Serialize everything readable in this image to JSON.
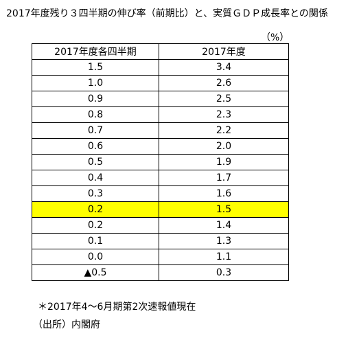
{
  "title": "2017年度残り３四半期の伸び率（前期比）と、実質ＧＤＰ成長率との関係",
  "unit": "（%）",
  "table": {
    "headers": [
      "2017年度各四半期",
      "2017年度"
    ],
    "rows": [
      [
        "1.5",
        "3.4"
      ],
      [
        "1.0",
        "2.6"
      ],
      [
        "0.9",
        "2.5"
      ],
      [
        "0.8",
        "2.3"
      ],
      [
        "0.7",
        "2.2"
      ],
      [
        "0.6",
        "2.0"
      ],
      [
        "0.5",
        "1.9"
      ],
      [
        "0.4",
        "1.7"
      ],
      [
        "0.3",
        "1.6"
      ],
      [
        "0.2",
        "1.5"
      ],
      [
        "0.2",
        "1.4"
      ],
      [
        "0.1",
        "1.3"
      ],
      [
        "0.0",
        "1.1"
      ],
      [
        "▲0.5",
        "0.3"
      ]
    ],
    "highlight_row_index": 9,
    "highlight_color": "#ffff00"
  },
  "note": "＊2017年4～6月期第2次速報値現在",
  "source": "（出所）内閣府"
}
